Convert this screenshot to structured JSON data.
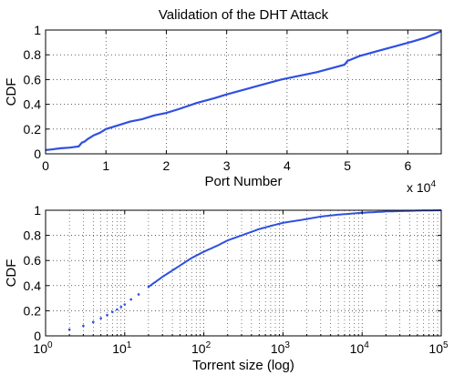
{
  "chart_data": [
    {
      "type": "line",
      "title": "Validation of the DHT Attack",
      "xlabel": "Port Number",
      "ylabel": "CDF",
      "x_multiplier": "x 10",
      "x_multiplier_exp": "4",
      "xlim": [
        0,
        65535
      ],
      "ylim": [
        0,
        1
      ],
      "x_scale": "linear",
      "grid": true,
      "xticks": [
        0,
        10000,
        20000,
        30000,
        40000,
        50000,
        60000
      ],
      "xtick_labels": [
        "0",
        "1",
        "2",
        "3",
        "4",
        "5",
        "6"
      ],
      "yticks": [
        0,
        0.2,
        0.4,
        0.6,
        0.8,
        1
      ],
      "ytick_labels": [
        "0",
        "0.2",
        "0.4",
        "0.6",
        "0.8",
        "1"
      ],
      "color": "#2f4fe0",
      "series": [
        {
          "x": [
            0,
            1000,
            2500,
            4000,
            5500,
            6000,
            6500,
            7000,
            8000,
            9000,
            10000,
            12000,
            14000,
            16000,
            18000,
            20000,
            22000,
            25000,
            28000,
            30000,
            33000,
            36000,
            39000,
            42000,
            45000,
            48000,
            49500,
            50000,
            52000,
            55000,
            58000,
            61000,
            63000,
            65535
          ],
          "y": [
            0.03,
            0.035,
            0.045,
            0.05,
            0.06,
            0.09,
            0.1,
            0.12,
            0.15,
            0.17,
            0.2,
            0.23,
            0.26,
            0.28,
            0.31,
            0.33,
            0.36,
            0.41,
            0.45,
            0.48,
            0.52,
            0.56,
            0.6,
            0.63,
            0.66,
            0.7,
            0.72,
            0.75,
            0.79,
            0.83,
            0.87,
            0.91,
            0.94,
            0.99
          ]
        }
      ]
    },
    {
      "type": "scatter",
      "xlabel": "Torrent size (log)",
      "ylabel": "CDF",
      "xlim": [
        1,
        100000
      ],
      "ylim": [
        0,
        1
      ],
      "x_scale": "log",
      "grid": true,
      "xticks": [
        1,
        10,
        100,
        1000,
        10000,
        100000
      ],
      "xtick_base": "10",
      "xtick_exponents": [
        "0",
        "1",
        "2",
        "3",
        "4",
        "5"
      ],
      "yticks": [
        0,
        0.2,
        0.4,
        0.6,
        0.8,
        1
      ],
      "ytick_labels": [
        "0",
        "0.2",
        "0.4",
        "0.6",
        "0.8",
        "1"
      ],
      "color": "#2f4fe0",
      "series": [
        {
          "x": [
            2,
            3,
            4,
            5,
            6,
            7,
            8,
            9,
            10,
            12,
            15,
            20,
            30,
            50,
            70,
            100,
            150,
            200,
            300,
            500,
            700,
            1000,
            2000,
            3000,
            5000,
            10000,
            20000,
            50000,
            100000
          ],
          "y": [
            0.05,
            0.08,
            0.11,
            0.14,
            0.165,
            0.19,
            0.21,
            0.23,
            0.25,
            0.29,
            0.33,
            0.39,
            0.47,
            0.56,
            0.62,
            0.67,
            0.72,
            0.76,
            0.8,
            0.85,
            0.875,
            0.9,
            0.93,
            0.95,
            0.965,
            0.98,
            0.99,
            0.997,
            1.0
          ]
        }
      ]
    }
  ]
}
